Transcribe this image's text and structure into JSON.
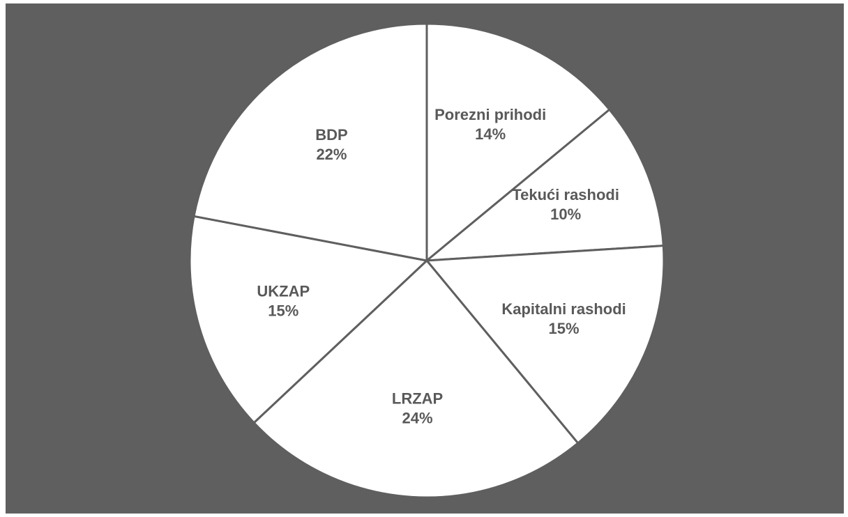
{
  "chart_data": {
    "type": "pie",
    "categories": [
      "Porezni prihodi",
      "Tekući rashodi",
      "Kapitalni rashodi",
      "LRZAP",
      "UKZAP",
      "BDP"
    ],
    "values": [
      14,
      10,
      15,
      24,
      15,
      22
    ],
    "value_labels": [
      "14%",
      "10%",
      "15%",
      "24%",
      "15%",
      "22%"
    ],
    "color": "#ffffff"
  }
}
